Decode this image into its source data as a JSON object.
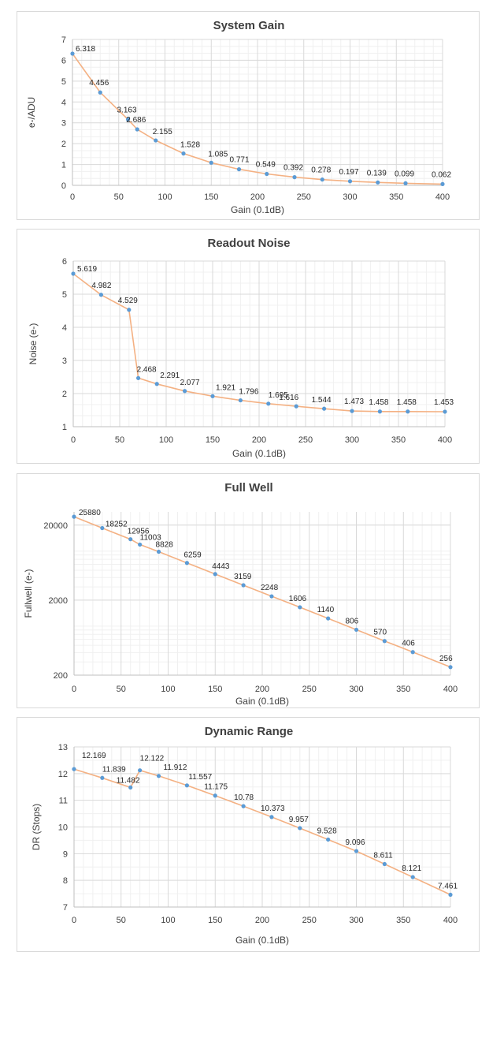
{
  "chart_data": [
    {
      "type": "line",
      "title": "System Gain",
      "xlabel": "Gain (0.1dB)",
      "ylabel": "e-/ADU",
      "xlim": [
        0,
        400
      ],
      "ylim": [
        0,
        7
      ],
      "xticks": [
        "0",
        "50",
        "100",
        "150",
        "200",
        "250",
        "300",
        "350",
        "400"
      ],
      "yticks": [
        "0",
        "1",
        "2",
        "3",
        "4",
        "5",
        "6",
        "7"
      ],
      "grid": true,
      "series": [
        {
          "x": [
            0,
            30,
            60,
            70,
            90,
            120,
            150,
            180,
            210,
            240,
            270,
            300,
            330,
            360,
            400
          ],
          "values": [
            6.318,
            4.456,
            3.163,
            2.686,
            2.155,
            1.528,
            1.085,
            0.771,
            0.549,
            0.392,
            0.278,
            0.197,
            0.139,
            0.099,
            0.062
          ],
          "labels": [
            "6.318",
            "4.456",
            "3.163",
            "2.686",
            "2.155",
            "1.528",
            "1.085",
            "0.771",
            "0.549",
            "0.392",
            "0.278",
            "0.197",
            "0.139",
            "0.099",
            "0.062"
          ]
        }
      ],
      "colors": {
        "line": "#f4b183",
        "marker": "#5b9bd5"
      }
    },
    {
      "type": "line",
      "title": "Readout Noise",
      "xlabel": "Gain (0.1dB)",
      "ylabel": "Noise (e-)",
      "xlim": [
        0,
        400
      ],
      "ylim": [
        1,
        6
      ],
      "xticks": [
        "0",
        "50",
        "100",
        "150",
        "200",
        "250",
        "300",
        "350",
        "400"
      ],
      "yticks": [
        "1",
        "2",
        "3",
        "4",
        "5",
        "6"
      ],
      "grid": true,
      "series": [
        {
          "x": [
            0,
            30,
            60,
            70,
            90,
            120,
            150,
            180,
            210,
            240,
            270,
            300,
            330,
            360,
            400
          ],
          "values": [
            5.619,
            4.982,
            4.529,
            2.468,
            2.291,
            2.077,
            1.921,
            1.796,
            1.695,
            1.616,
            1.544,
            1.473,
            1.458,
            1.458,
            1.453
          ],
          "labels": [
            "5.619",
            "4.982",
            "4.529",
            "2.468",
            "2.291",
            "2.077",
            "1.921",
            "1.796",
            "1.695",
            "1.616",
            "1.544",
            "1.473",
            "1.458",
            "1.458",
            "1.453"
          ]
        }
      ],
      "colors": {
        "line": "#f4b183",
        "marker": "#5b9bd5"
      }
    },
    {
      "type": "line",
      "title": "Full Well",
      "xlabel": "Gain (0.1dB)",
      "ylabel": "Fullwell (e-)",
      "xlim": [
        0,
        400
      ],
      "ylim": [
        200,
        30000
      ],
      "yscale": "log",
      "xticks": [
        "0",
        "50",
        "100",
        "150",
        "200",
        "250",
        "300",
        "350",
        "400"
      ],
      "yticks": [
        "200",
        "2000",
        "20000"
      ],
      "grid": true,
      "series": [
        {
          "x": [
            0,
            30,
            60,
            70,
            90,
            120,
            150,
            180,
            210,
            240,
            270,
            300,
            330,
            360,
            400
          ],
          "values": [
            25880,
            18252,
            12956,
            11003,
            8828,
            6259,
            4443,
            3159,
            2248,
            1606,
            1140,
            806,
            570,
            406,
            256
          ],
          "labels": [
            "25880",
            "18252",
            "12956",
            "11003",
            "8828",
            "6259",
            "4443",
            "3159",
            "2248",
            "1606",
            "1140",
            "806",
            "570",
            "406",
            "256"
          ]
        }
      ],
      "colors": {
        "line": "#f4b183",
        "marker": "#5b9bd5"
      }
    },
    {
      "type": "line",
      "title": "Dynamic Range",
      "xlabel": "Gain (0.1dB)",
      "ylabel": "DR (Stops)",
      "xlim": [
        0,
        400
      ],
      "ylim": [
        7,
        13
      ],
      "xticks": [
        "0",
        "50",
        "100",
        "150",
        "200",
        "250",
        "300",
        "350",
        "400"
      ],
      "yticks": [
        "7",
        "8",
        "9",
        "10",
        "11",
        "12",
        "13"
      ],
      "grid": true,
      "series": [
        {
          "x": [
            0,
            30,
            60,
            70,
            90,
            120,
            150,
            180,
            210,
            240,
            270,
            300,
            330,
            360,
            400
          ],
          "values": [
            12.169,
            11.839,
            11.482,
            12.122,
            11.912,
            11.557,
            11.175,
            10.78,
            10.373,
            9.957,
            9.528,
            9.096,
            8.611,
            8.121,
            7.461
          ],
          "labels": [
            "12.169",
            "11.839",
            "11.482",
            "12.122",
            "11.912",
            "11.557",
            "11.175",
            "10.78",
            "10.373",
            "9.957",
            "9.528",
            "9.096",
            "8.611",
            "8.121",
            "7.461"
          ]
        }
      ],
      "colors": {
        "line": "#f4b183",
        "marker": "#5b9bd5"
      }
    }
  ]
}
